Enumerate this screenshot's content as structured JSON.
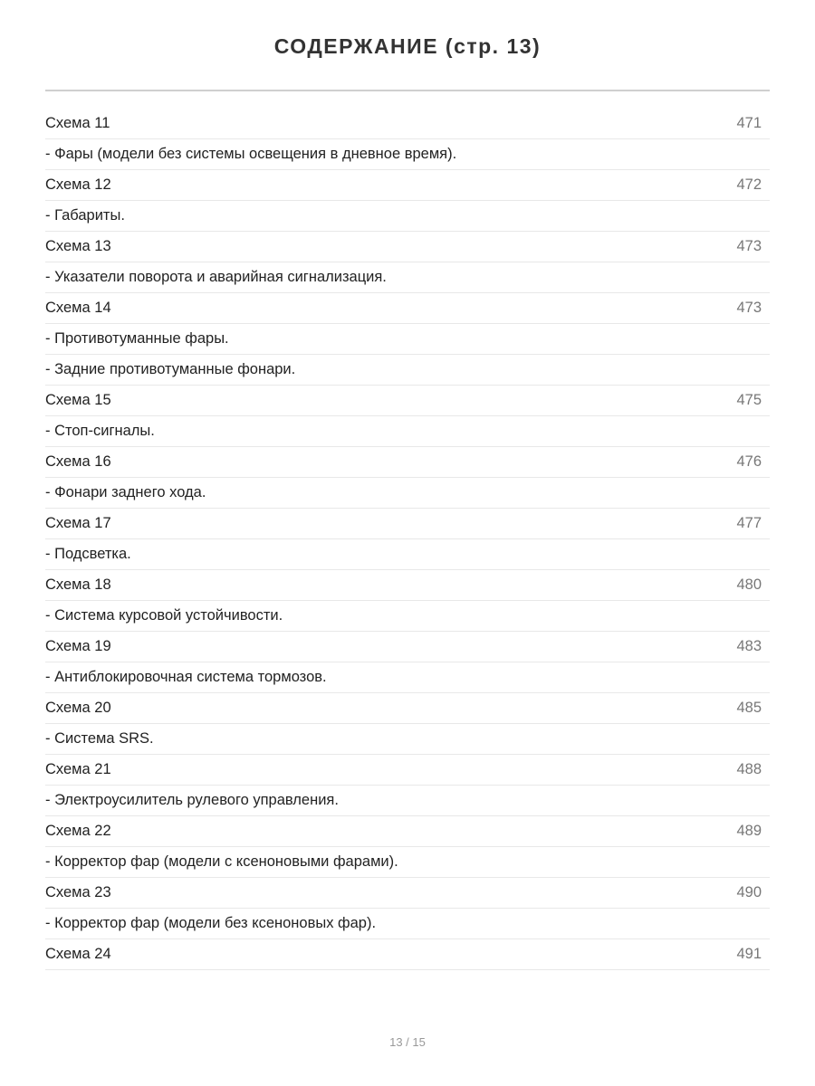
{
  "title": "СОДЕРЖАНИЕ (стр. 13)",
  "entries": [
    {
      "label": "Схема 11",
      "page": "471"
    },
    {
      "label": "- Фары (модели без системы освещения в дневное время).",
      "page": ""
    },
    {
      "label": "Схема 12",
      "page": "472"
    },
    {
      "label": "- Габариты.",
      "page": ""
    },
    {
      "label": "Схема 13",
      "page": "473"
    },
    {
      "label": "- Указатели поворота и аварийная сигнализация.",
      "page": ""
    },
    {
      "label": "Схема 14",
      "page": "473"
    },
    {
      "label": "- Противотуманные фары.",
      "page": ""
    },
    {
      "label": "- Задние противотуманные фонари.",
      "page": ""
    },
    {
      "label": "Схема 15",
      "page": "475"
    },
    {
      "label": "- Стоп-сигналы.",
      "page": ""
    },
    {
      "label": "Схема 16",
      "page": "476"
    },
    {
      "label": "- Фонари заднего хода.",
      "page": ""
    },
    {
      "label": "Схема 17",
      "page": "477"
    },
    {
      "label": "- Подсветка.",
      "page": ""
    },
    {
      "label": "Схема 18",
      "page": "480"
    },
    {
      "label": "- Система курсовой устойчивости.",
      "page": ""
    },
    {
      "label": "Схема 19",
      "page": "483"
    },
    {
      "label": "- Антиблокировочная система тормозов.",
      "page": ""
    },
    {
      "label": "Схема 20",
      "page": "485"
    },
    {
      "label": "- Система SRS.",
      "page": ""
    },
    {
      "label": "Схема 21",
      "page": "488"
    },
    {
      "label": "- Электроусилитель рулевого управления.",
      "page": ""
    },
    {
      "label": "Схема 22",
      "page": "489"
    },
    {
      "label": "- Корректор фар (модели с ксеноновыми фарами).",
      "page": ""
    },
    {
      "label": "Схема 23",
      "page": "490"
    },
    {
      "label": "- Корректор фар (модели без ксеноновых фар).",
      "page": ""
    },
    {
      "label": "Схема 24",
      "page": "491"
    }
  ],
  "footer": {
    "page_indicator": "13 / 15"
  }
}
